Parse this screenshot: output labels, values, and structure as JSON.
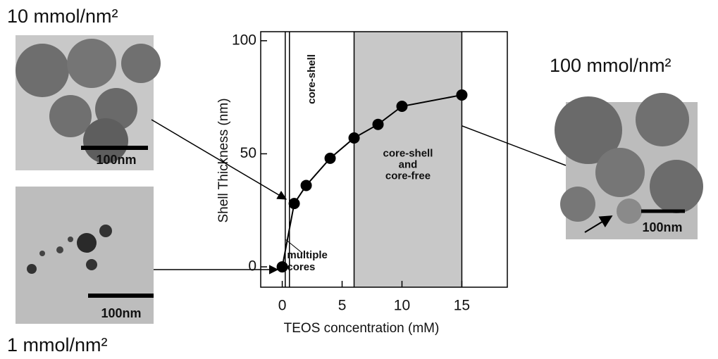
{
  "chart_data": {
    "type": "line",
    "x_label": "TEOS concentration (mM)",
    "y_label": "Shell Thickness (nm)",
    "x": [
      0,
      1,
      2,
      4,
      6,
      8,
      10,
      15
    ],
    "values": [
      0,
      28,
      36,
      48,
      57,
      63,
      71,
      76
    ],
    "color": "#000000",
    "xlim": [
      -1.8,
      18.8
    ],
    "ylim": [
      -9,
      104
    ],
    "xticks": [
      0,
      5,
      10,
      15
    ],
    "yticks": [
      0,
      50,
      100
    ],
    "vlines": [
      0.25,
      0.6,
      6,
      15
    ],
    "shaded": [
      6,
      15
    ],
    "shade_color": "#c8c8c8",
    "annotations": {
      "core_shell": "core-shell",
      "mixed": [
        "core-shell",
        "and",
        "core-free"
      ],
      "multiple": [
        "multiple",
        "cores"
      ]
    }
  },
  "images": [
    {
      "label": "10 mmol/nm²",
      "scale_bar": "100nm"
    },
    {
      "label": "1 mmol/nm²",
      "scale_bar": "100nm"
    },
    {
      "label": "100 mmol/nm²",
      "scale_bar": "100nm"
    }
  ]
}
